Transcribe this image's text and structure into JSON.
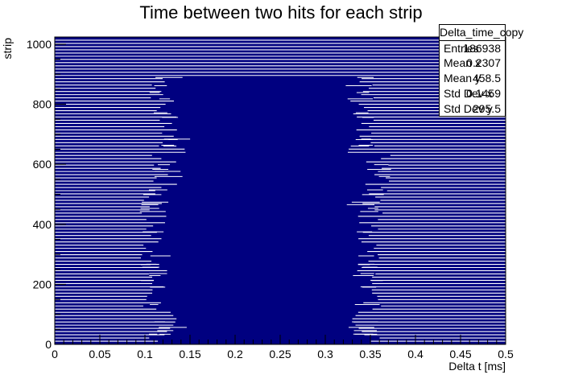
{
  "chart_data": {
    "type": "heatmap",
    "title": "Time between two hits for each strip",
    "xlabel": "Delta t [ms]",
    "ylabel": "strip",
    "xlim": [
      0,
      0.5
    ],
    "ylim": [
      0,
      1024
    ],
    "x_ticks": [
      "0",
      "0.05",
      "0.1",
      "0.15",
      "0.2",
      "0.25",
      "0.3",
      "0.35",
      "0.4",
      "0.45",
      "0.5"
    ],
    "y_ticks": [
      "0",
      "200",
      "400",
      "600",
      "800",
      "1000"
    ],
    "color": "#000080",
    "dense_bands": [
      {
        "strip_start": 0,
        "strip_end": 128,
        "x_start": 0.12,
        "x_end": 0.345
      },
      {
        "strip_start": 128,
        "strip_end": 256,
        "x_start": 0.11,
        "x_end": 0.35
      },
      {
        "strip_start": 256,
        "strip_end": 384,
        "x_start": 0.11,
        "x_end": 0.345
      },
      {
        "strip_start": 384,
        "strip_end": 512,
        "x_start": 0.11,
        "x_end": 0.35
      },
      {
        "strip_start": 512,
        "strip_end": 640,
        "x_start": 0.12,
        "x_end": 0.36
      },
      {
        "strip_start": 640,
        "strip_end": 768,
        "x_start": 0.13,
        "x_end": 0.34
      },
      {
        "strip_start": 768,
        "strip_end": 896,
        "x_start": 0.12,
        "x_end": 0.34
      }
    ],
    "stats": {
      "name": "Delta_time_copy",
      "entries": "186938",
      "mean_x": "0.2307",
      "mean_y": "458.5",
      "std_dev_x": "0.1459",
      "std_dev_y": "295.5"
    }
  },
  "stats_labels": {
    "entries": "Entries",
    "mean_x": "Mean x",
    "mean_y": "Mean y",
    "std_dev_x": "Std Dev x",
    "std_dev_y": "Std Dev y"
  }
}
